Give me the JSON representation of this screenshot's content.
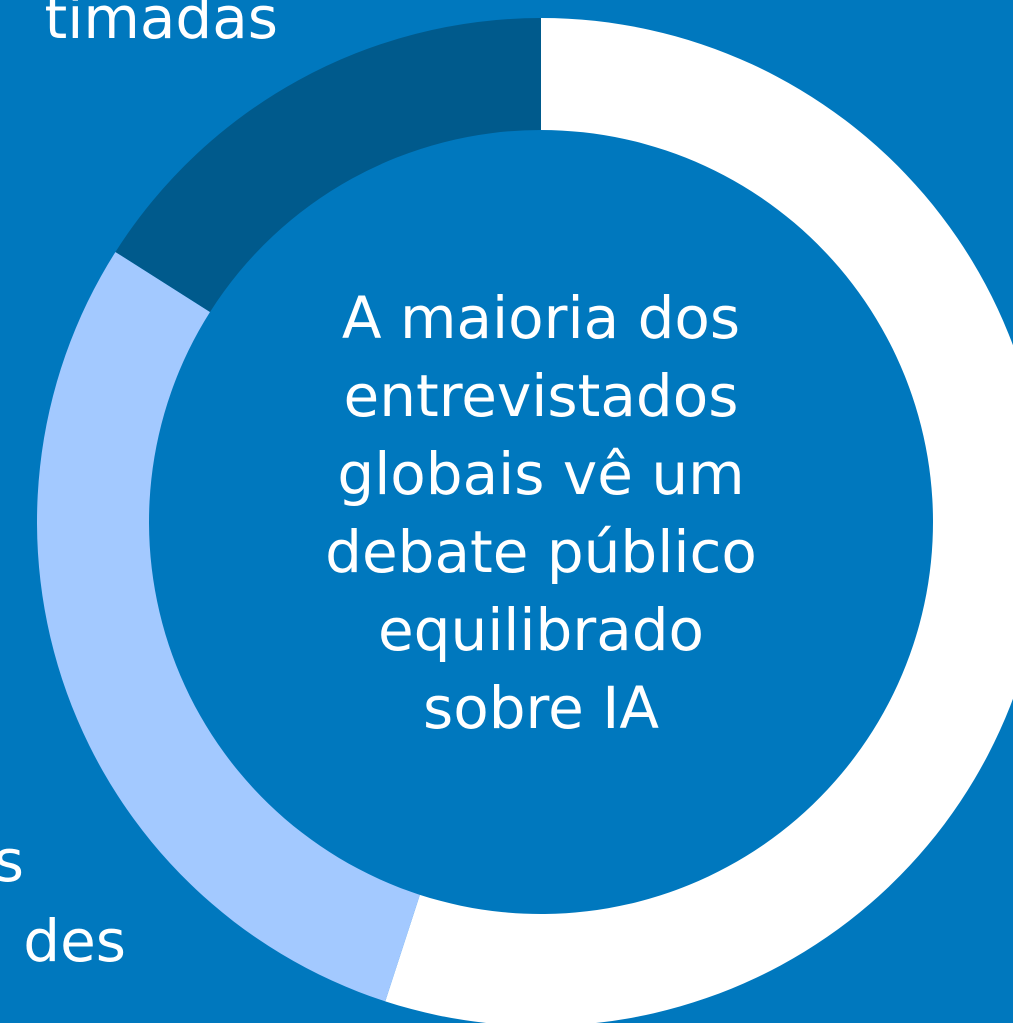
{
  "chart_data": {
    "type": "donut",
    "values": [
      55,
      29,
      16
    ],
    "colors": [
      "#ffffff",
      "#a3c9ff",
      "#005a8c"
    ],
    "center_text": [
      "A maioria dos",
      "entrevistados",
      "globais vê um",
      "debate público",
      "equilibrado",
      "sobre IA"
    ],
    "annotations": [
      "timadas",
      "s",
      "des"
    ]
  }
}
